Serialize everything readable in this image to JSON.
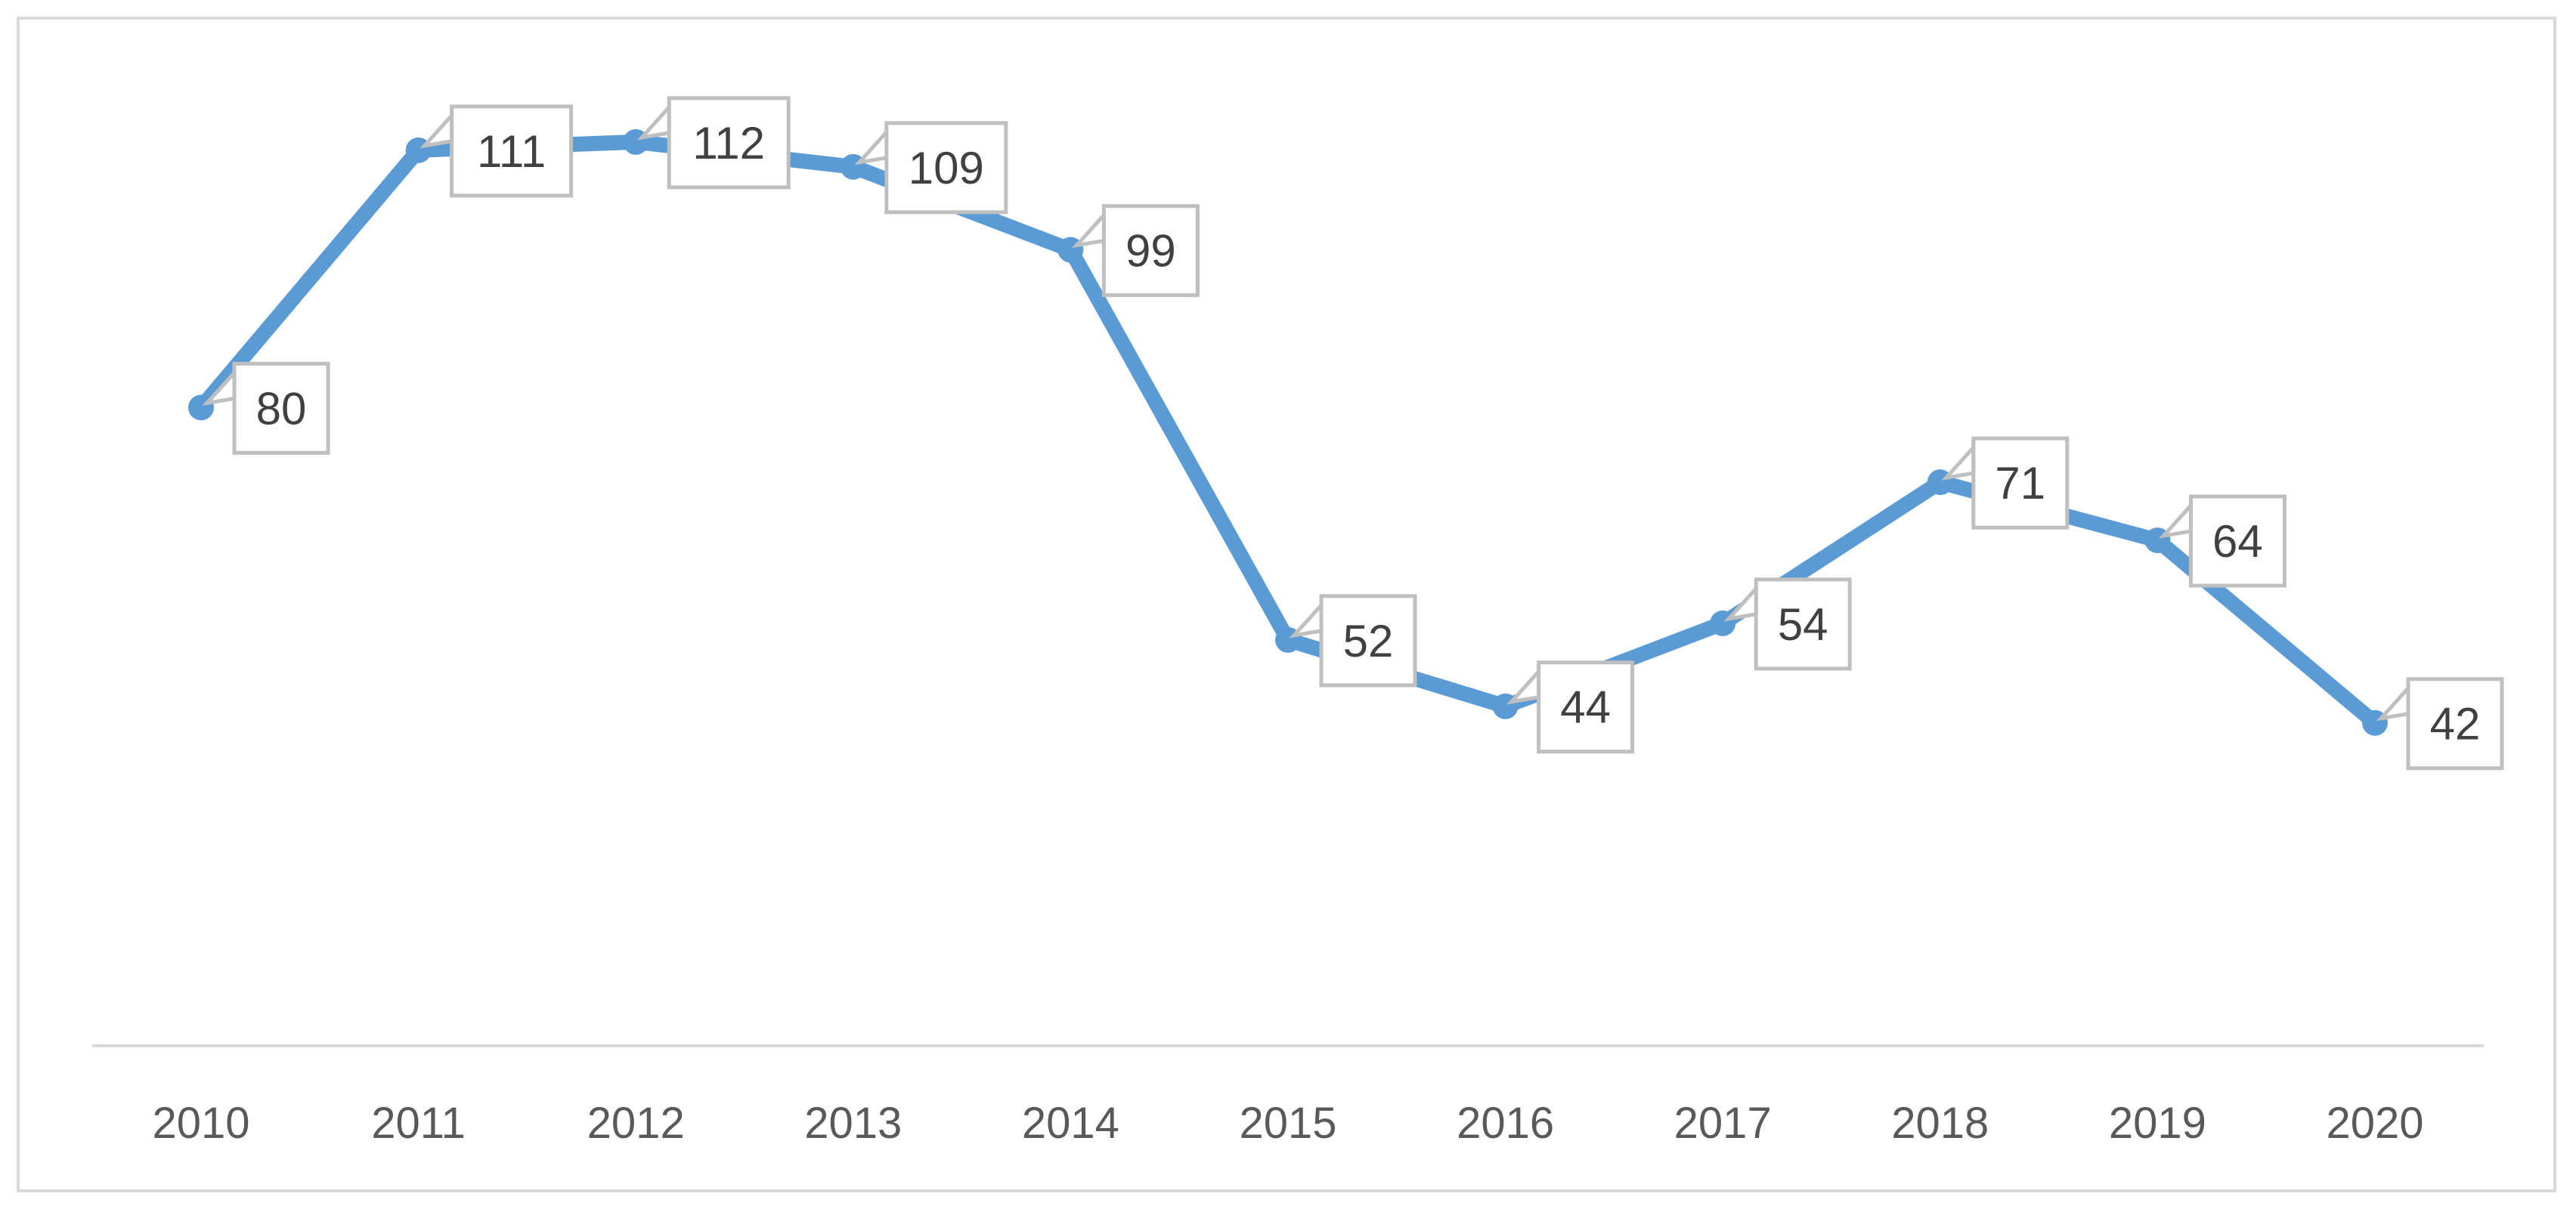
{
  "chart_data": {
    "type": "line",
    "categories": [
      "2010",
      "2011",
      "2012",
      "2013",
      "2014",
      "2015",
      "2016",
      "2017",
      "2018",
      "2019",
      "2020"
    ],
    "series": [
      {
        "values": [
          80,
          111,
          112,
          109,
          99,
          52,
          44,
          54,
          71,
          64,
          42
        ]
      }
    ],
    "data_labels": true,
    "title": "",
    "xlabel": "",
    "ylabel": "",
    "ylim": [
      0,
      120
    ],
    "grid": false,
    "legend": "none",
    "colors": {
      "line": "#5b9bd5",
      "axis": "#d9d9d9",
      "frame": "#d9d9d9",
      "tick_text": "#595959",
      "label_text": "#404040",
      "label_border": "#bfbfbf"
    }
  }
}
